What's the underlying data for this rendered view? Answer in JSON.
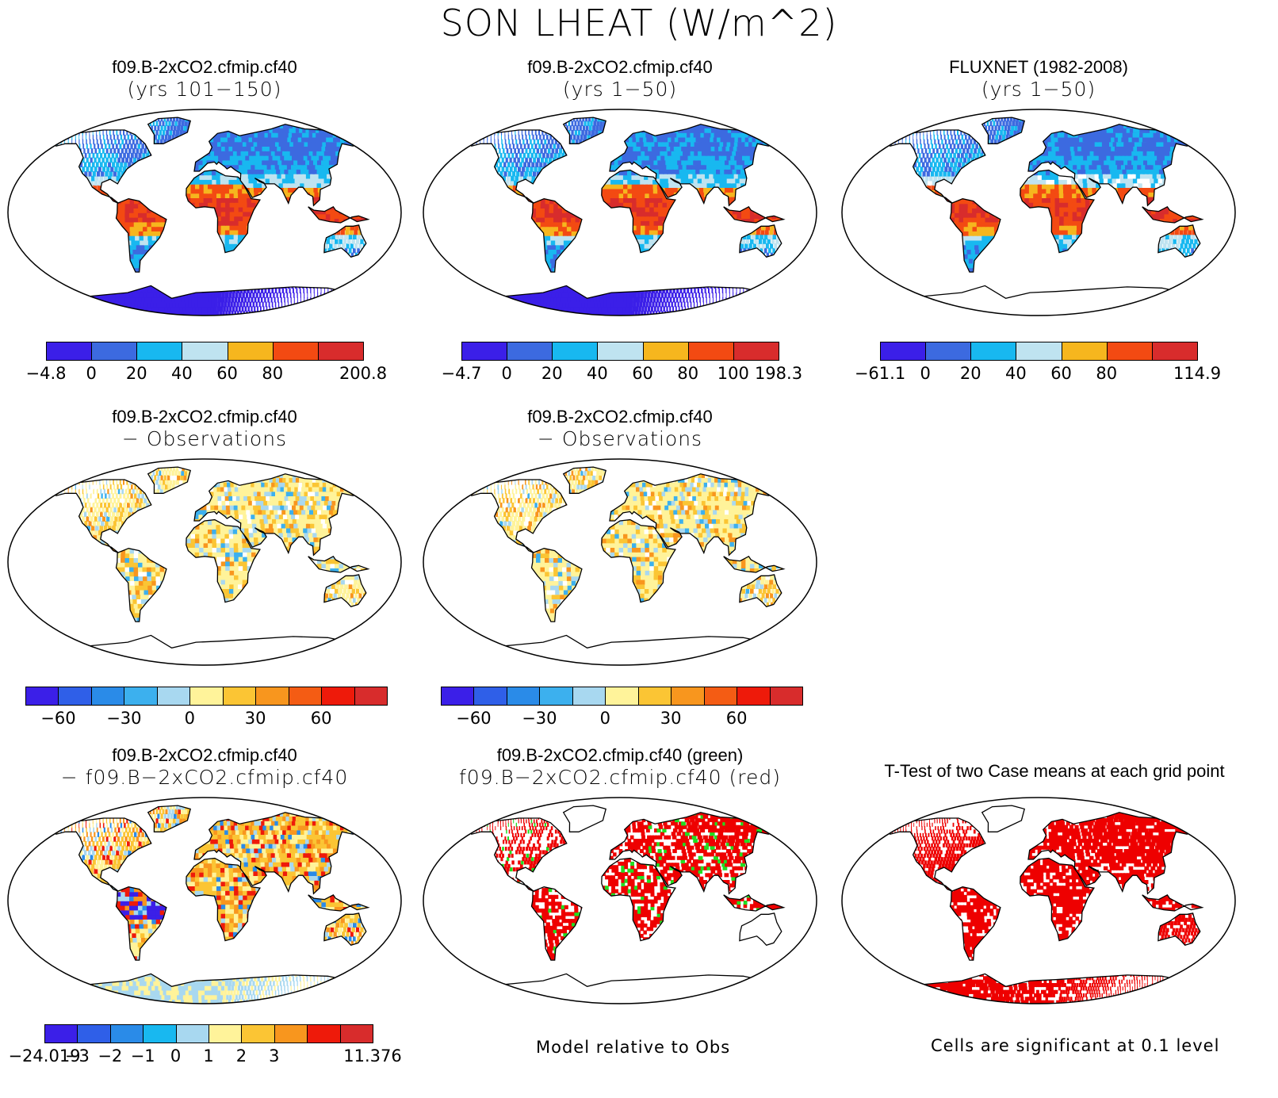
{
  "title": "SON LHEAT (W/m^2)",
  "panels": [
    {
      "title1": "f09.B-2xCO2.cfmip.cf40",
      "title2": "(yrs 101−150)",
      "style": "abs",
      "colorbar": {
        "colors": [
          "#3b1fe8",
          "#3c6ae0",
          "#18b8f0",
          "#bfe3f0",
          "#f6b61e",
          "#f34a12",
          "#d82c2c"
        ],
        "ticks": [
          "−4.8",
          "0",
          "20",
          "40",
          "60",
          "80",
          "200.8"
        ]
      }
    },
    {
      "title1": "f09.B-2xCO2.cfmip.cf40",
      "title2": "(yrs 1−50)",
      "style": "abs",
      "colorbar": {
        "colors": [
          "#3b1fe8",
          "#3c6ae0",
          "#18b8f0",
          "#bfe3f0",
          "#f6b61e",
          "#f34a12",
          "#d82c2c"
        ],
        "ticks": [
          "−4.7",
          "0",
          "20",
          "40",
          "60",
          "80",
          "100",
          "198.3"
        ]
      }
    },
    {
      "title1": "FLUXNET (1982-2008)",
      "title2": "(yrs 1−50)",
      "style": "obs",
      "colorbar": {
        "colors": [
          "#3b1fe8",
          "#3c6ae0",
          "#18b8f0",
          "#bfe3f0",
          "#f6b61e",
          "#f34a12",
          "#d82c2c"
        ],
        "ticks": [
          "−61.1",
          "0",
          "20",
          "40",
          "60",
          "80",
          "114.9"
        ]
      }
    },
    {
      "title1": "f09.B-2xCO2.cfmip.cf40",
      "title2": "− Observations",
      "style": "diff",
      "colorbar": {
        "colors": [
          "#3b1fe8",
          "#2f5fe8",
          "#2a8be8",
          "#3cb0ee",
          "#a8d8f0",
          "#fff39a",
          "#fbc534",
          "#f8961e",
          "#f45c14",
          "#ee1a0a",
          "#d82c2c"
        ],
        "ticks": [
          "−60",
          "−30",
          "0",
          "30",
          "60"
        ]
      }
    },
    {
      "title1": "f09.B-2xCO2.cfmip.cf40",
      "title2": "− Observations",
      "style": "diff",
      "colorbar": {
        "colors": [
          "#3b1fe8",
          "#2f5fe8",
          "#2a8be8",
          "#3cb0ee",
          "#a8d8f0",
          "#fff39a",
          "#fbc534",
          "#f8961e",
          "#f45c14",
          "#ee1a0a",
          "#d82c2c"
        ],
        "ticks": [
          "−60",
          "−30",
          "0",
          "30",
          "60"
        ]
      }
    },
    {
      "title1": "f09.B-2xCO2.cfmip.cf40",
      "title2": "− f09.B−2xCO2.cfmip.cf40",
      "style": "diff2",
      "colorbar": {
        "colors": [
          "#3b1fe8",
          "#2f5fe8",
          "#2a8be8",
          "#18b8f0",
          "#a8d8f0",
          "#fff39a",
          "#fbc534",
          "#f8961e",
          "#ee1a0a",
          "#d82c2c"
        ],
        "ticks": [
          "−24.019",
          "−3",
          "−2",
          "−1",
          "0",
          "1",
          "2",
          "3",
          "11.376"
        ]
      }
    },
    {
      "title1": "f09.B-2xCO2.cfmip.cf40 (green)",
      "title2": "f09.B−2xCO2.cfmip.cf40 (red)",
      "style": "rg",
      "note": "Model relative to Obs"
    },
    {
      "title1": "T-Test of two Case means at each grid point",
      "title2": "",
      "style": "ttest",
      "note": "Cells are significant at 0.1 level"
    }
  ]
}
